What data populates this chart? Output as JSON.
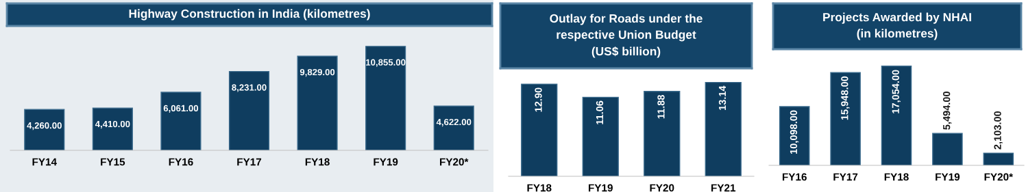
{
  "chart_data": [
    {
      "type": "bar",
      "title": "Highway Construction in India (kilometres)",
      "categories": [
        "FY14",
        "FY15",
        "FY16",
        "FY17",
        "FY18",
        "FY19",
        "FY20*"
      ],
      "values": [
        4260,
        4410,
        6061,
        8231,
        9829,
        10855,
        4622
      ],
      "value_labels": [
        "4,260.00",
        "4,410.00",
        "6,061.00",
        "8,231.00",
        "9,829.00",
        "10,855.00",
        "4,622.00"
      ],
      "color": "#0f3d5f"
    },
    {
      "type": "bar",
      "title": "Outlay for Roads under the respective Union Budget (US$ billion)",
      "categories": [
        "FY18",
        "FY19",
        "FY20",
        "FY21"
      ],
      "values": [
        12.9,
        11.06,
        11.88,
        13.14
      ],
      "value_labels": [
        "12.90",
        "11.06",
        "11.88",
        "13.14"
      ],
      "color": "#0f3d5f"
    },
    {
      "type": "bar",
      "title": "Projects Awarded by NHAI (in kilometres)",
      "categories": [
        "FY16",
        "FY17",
        "FY18",
        "FY19",
        "FY20*"
      ],
      "values": [
        10098,
        15948,
        17054,
        5494,
        2103
      ],
      "value_labels": [
        "10,098.00",
        "15,948.00",
        "17,054.00",
        "5,494.00",
        "2,103.00"
      ],
      "color": "#0f3d5f"
    }
  ]
}
